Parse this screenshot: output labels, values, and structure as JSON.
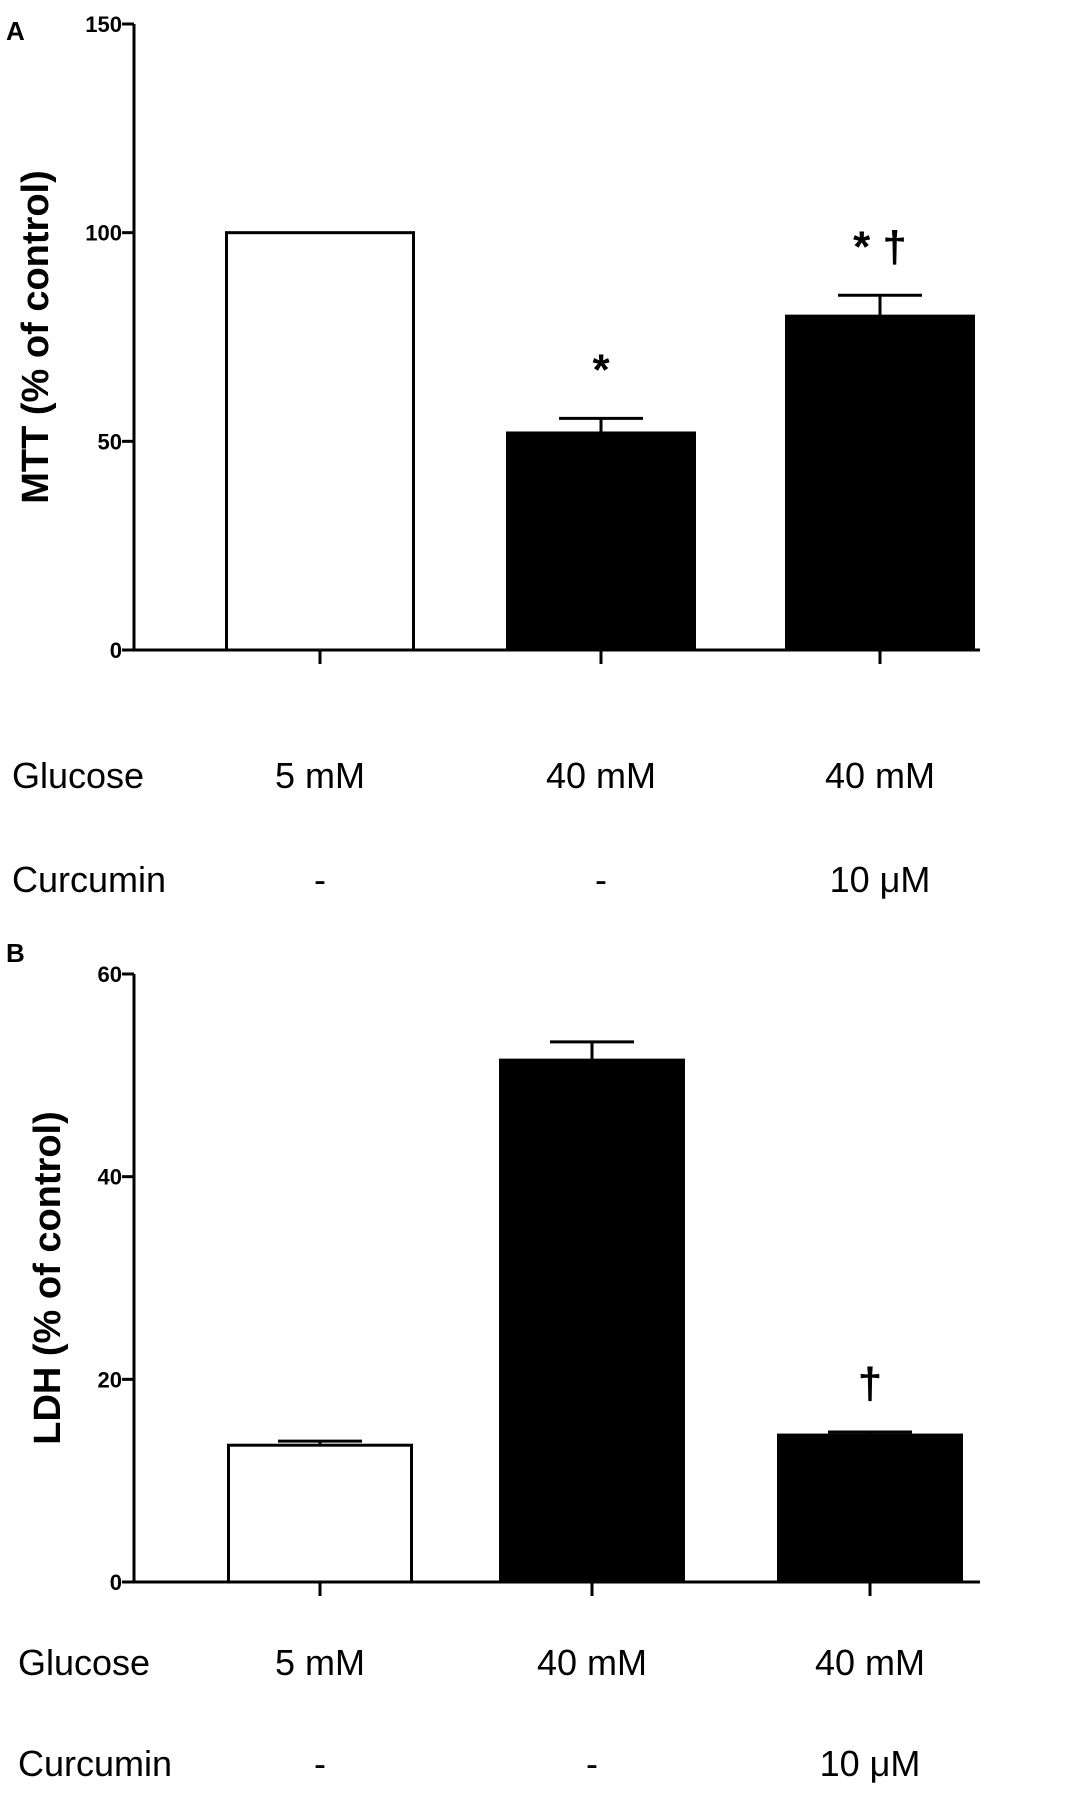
{
  "chart_data": [
    {
      "panel": "A",
      "type": "bar",
      "ylabel": "MTT (% of control)",
      "ylim": [
        0,
        150
      ],
      "yticks": [
        "0",
        "50",
        "100",
        "150"
      ],
      "rows": [
        {
          "label": "Glucose",
          "values": [
            "5 mM",
            "40 mM",
            "40 mM"
          ]
        },
        {
          "label": "Curcumin",
          "values": [
            "-",
            "-",
            "10 μM"
          ]
        }
      ],
      "values": [
        100,
        52,
        80
      ],
      "errors": [
        0,
        3.5,
        5
      ],
      "fills": [
        "#ffffff",
        "#000000",
        "#000000"
      ],
      "annotations": [
        "",
        "*",
        "* †"
      ]
    },
    {
      "panel": "B",
      "type": "bar",
      "ylabel": "LDH (% of control)",
      "ylim": [
        0,
        60
      ],
      "yticks": [
        "0",
        "20",
        "40",
        "60"
      ],
      "rows": [
        {
          "label": "Glucose",
          "values": [
            "5 mM",
            "40 mM",
            "40 mM"
          ]
        },
        {
          "label": "Curcumin",
          "values": [
            "-",
            "-",
            "10 μM"
          ]
        }
      ],
      "values": [
        13.5,
        51.5,
        14.5
      ],
      "errors": [
        0.4,
        1.8,
        0.3
      ],
      "fills": [
        "#ffffff",
        "#000000",
        "#000000"
      ],
      "annotations": [
        "",
        "",
        "†"
      ]
    }
  ]
}
